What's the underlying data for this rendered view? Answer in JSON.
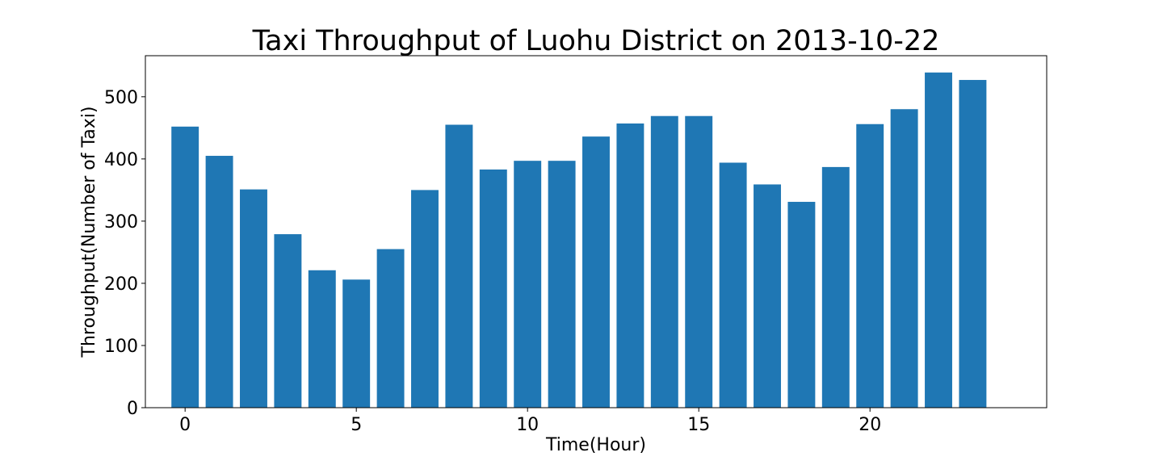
{
  "chart_data": {
    "type": "bar",
    "title": "Taxi Throughput of Luohu District on 2013-10-22",
    "xlabel": "Time(Hour)",
    "ylabel": "Throughput(Number of Taxi)",
    "x": [
      0,
      1,
      2,
      3,
      4,
      5,
      6,
      7,
      8,
      9,
      10,
      11,
      12,
      13,
      14,
      15,
      16,
      17,
      18,
      19,
      20,
      21,
      22,
      23
    ],
    "values": [
      452,
      405,
      351,
      279,
      221,
      206,
      255,
      350,
      455,
      383,
      397,
      397,
      436,
      457,
      469,
      469,
      394,
      359,
      331,
      387,
      456,
      480,
      539,
      527
    ],
    "xlim": [
      -1.16,
      25.16
    ],
    "ylim": [
      0,
      566
    ],
    "xticks": [
      0,
      5,
      10,
      15,
      20
    ],
    "yticks": [
      0,
      100,
      200,
      300,
      400,
      500
    ],
    "bar_color": "#1f77b4",
    "grid": false,
    "legend": "none"
  }
}
